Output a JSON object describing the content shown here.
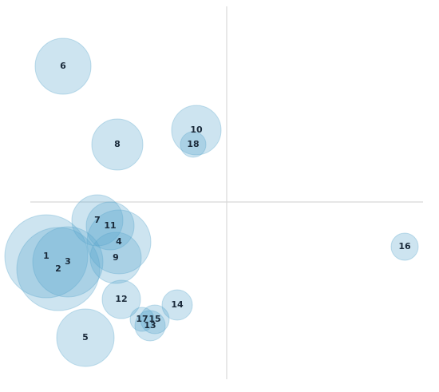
{
  "chart_data": {
    "type": "bubble",
    "labels": [
      "1",
      "2",
      "3",
      "4",
      "5",
      "6",
      "7",
      "8",
      "9",
      "10",
      "11",
      "12",
      "13",
      "14",
      "15",
      "16",
      "17",
      "18"
    ],
    "x": [
      -226,
      -211,
      -199,
      -135,
      -177,
      -205,
      -162,
      -137,
      -139,
      -38,
      -146,
      -132,
      -96,
      -62,
      -90,
      223,
      -106,
      -42
    ],
    "y": [
      -68,
      -84,
      -75,
      -50,
      -170,
      170,
      -23,
      72,
      -70,
      90,
      -30,
      -122,
      -155,
      -129,
      -147,
      -56,
      -147,
      72
    ],
    "sizes": [
      52,
      52,
      44,
      40,
      36,
      35,
      32,
      32,
      32,
      31,
      30,
      24,
      19,
      19,
      18,
      17,
      15,
      16
    ],
    "color": "#5aa5cc",
    "xlim": [
      -246,
      246
    ],
    "ylim": [
      -222,
      245
    ]
  }
}
